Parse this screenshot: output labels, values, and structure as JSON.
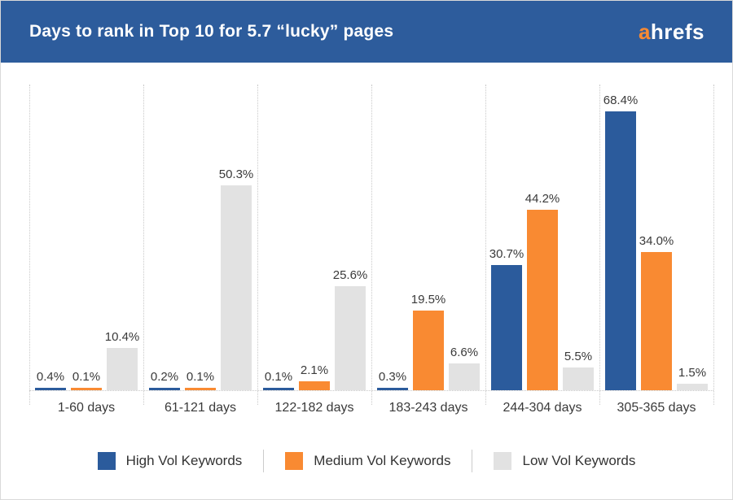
{
  "header": {
    "title": "Days to rank in Top 10 for 5.7 “lucky” pages",
    "logo": {
      "prefix": "a",
      "suffix": "hrefs"
    }
  },
  "colors": {
    "header_bg": "#2d5c9c",
    "high_vol": "#2b5b9c",
    "medium_vol": "#f98a32",
    "low_vol": "#e2e2e2",
    "gridline": "#c9c9c9",
    "text": "#3a3a3a",
    "frame_border": "#d9d9d9"
  },
  "chart_data": {
    "type": "bar",
    "title": "Days to rank in Top 10 for 5.7 “lucky” pages",
    "categories": [
      "1-60 days",
      "61-121 days",
      "122-182 days",
      "183-243 days",
      "244-304 days",
      "305-365 days"
    ],
    "series": [
      {
        "name": "High Vol Keywords",
        "color": "#2b5b9c",
        "values": [
          0.4,
          0.2,
          0.1,
          0.3,
          30.7,
          68.4
        ],
        "labels": [
          "0.4%",
          "0.2%",
          "0.1%",
          "0.3%",
          "30.7%",
          "68.4%"
        ]
      },
      {
        "name": "Medium Vol Keywords",
        "color": "#f98a32",
        "values": [
          0.1,
          0.1,
          2.1,
          19.5,
          44.2,
          34.0
        ],
        "labels": [
          "0.1%",
          "0.1%",
          "2.1%",
          "19.5%",
          "44.2%",
          "34.0%"
        ]
      },
      {
        "name": "Low Vol Keywords",
        "color": "#e2e2e2",
        "values": [
          10.4,
          50.3,
          25.6,
          6.6,
          5.5,
          1.5
        ],
        "labels": [
          "10.4%",
          "50.3%",
          "25.6%",
          "6.6%",
          "5.5%",
          "1.5%"
        ]
      }
    ],
    "xlabel": "",
    "ylabel": "",
    "ylim": [
      0,
      75
    ],
    "grid": "vertical-dotted",
    "legend_position": "bottom",
    "value_labels_shown": true
  }
}
